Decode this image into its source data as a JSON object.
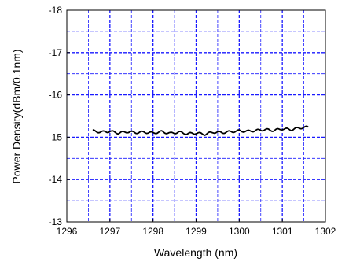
{
  "chart_data": {
    "type": "line",
    "xlabel": "Wavelength (nm)",
    "ylabel": "Power Density(dBm/0.1nm)",
    "xlim": [
      1296,
      1302
    ],
    "ylim": [
      -13,
      -18
    ],
    "y_axis_inverted": true,
    "x_ticks": [
      1296,
      1297,
      1298,
      1299,
      1300,
      1301,
      1302
    ],
    "y_ticks": [
      -13,
      -14,
      -15,
      -16,
      -17,
      -18
    ],
    "y_tick_labels": [
      "-13",
      "-14",
      "-15",
      "-16",
      "-17",
      "-18"
    ],
    "x_tick_labels": [
      "1296",
      "1297",
      "1298",
      "1299",
      "1300",
      "1301",
      "1302"
    ],
    "x_minor_grid_step": 0.5,
    "y_minor_grid_step": 0.5,
    "grid": true,
    "grid_color": "#1a1aff",
    "grid_style": "dashed",
    "line_color": "#000000",
    "series": [
      {
        "x": [
          1296.6,
          1296.8,
          1297.0,
          1297.2,
          1297.4,
          1297.6,
          1297.8,
          1298.0,
          1298.2,
          1298.4,
          1298.6,
          1298.8,
          1299.0,
          1299.2,
          1299.4,
          1299.6,
          1299.8,
          1300.0,
          1300.2,
          1300.4,
          1300.6,
          1300.8,
          1301.0,
          1301.2,
          1301.4,
          1301.6
        ],
        "values": [
          -15.15,
          -15.12,
          -15.14,
          -15.1,
          -15.13,
          -15.11,
          -15.12,
          -15.1,
          -15.13,
          -15.09,
          -15.12,
          -15.08,
          -15.1,
          -15.07,
          -15.12,
          -15.11,
          -15.13,
          -15.15,
          -15.14,
          -15.16,
          -15.18,
          -15.16,
          -15.2,
          -15.18,
          -15.22,
          -15.24
        ]
      }
    ]
  }
}
